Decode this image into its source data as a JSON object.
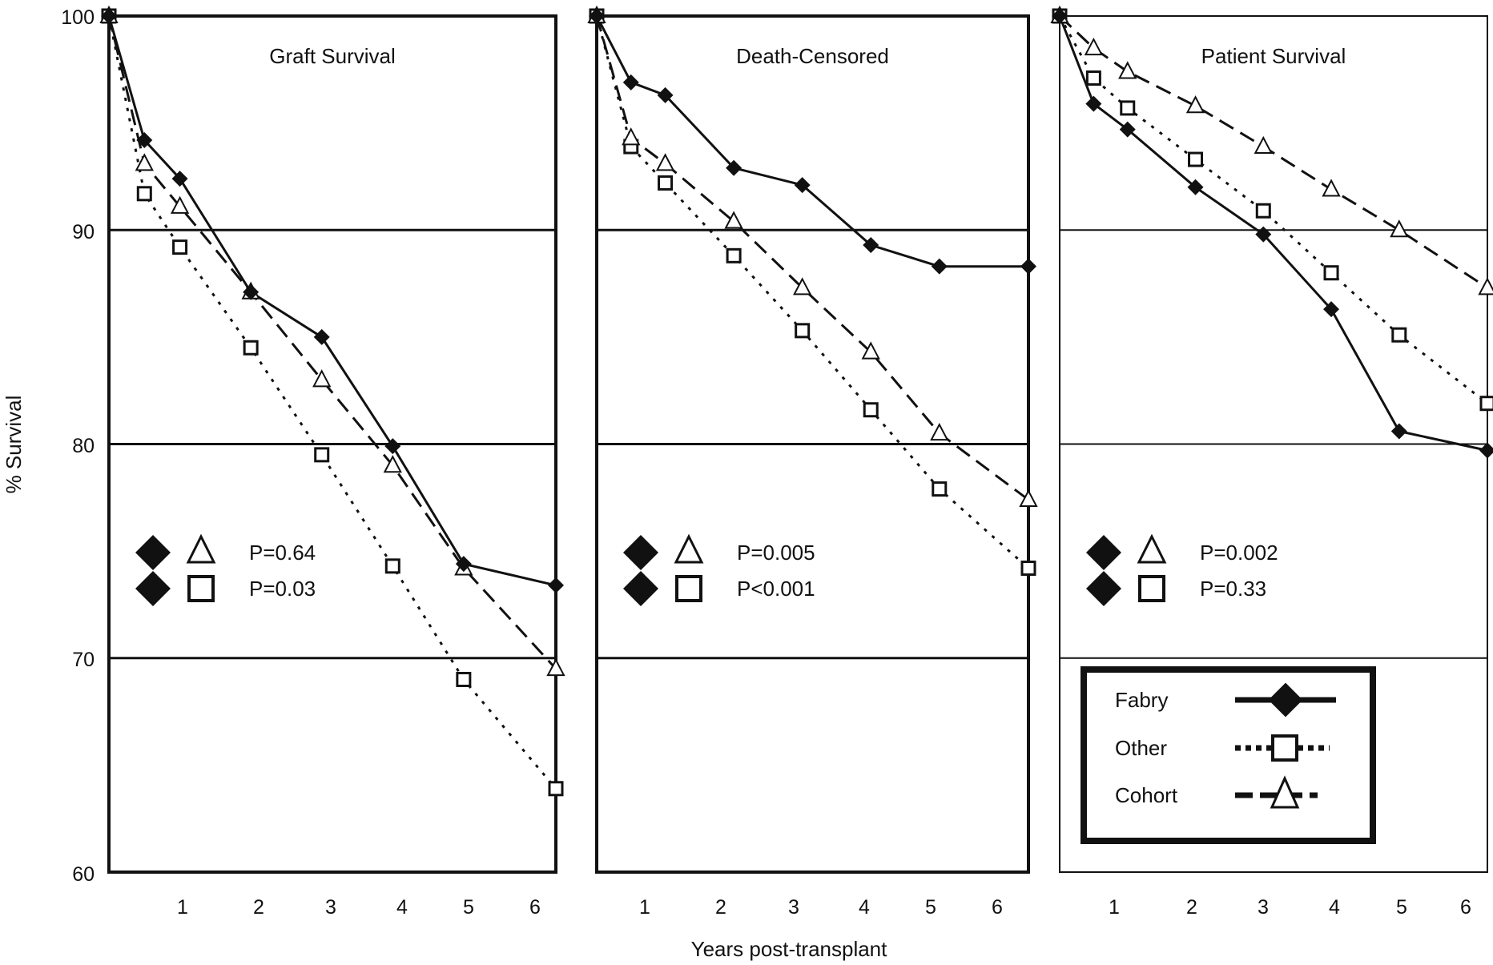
{
  "figure": {
    "y_axis_label": "% Survival",
    "x_axis_label": "Years post-transplant",
    "y_ticks": [
      "100",
      "90",
      "80",
      "70",
      "60"
    ],
    "x_ticks": [
      "1",
      "2",
      "3",
      "4",
      "5",
      "6"
    ]
  },
  "legend": {
    "entries": [
      {
        "label": "Fabry",
        "marker": "filled-diamond",
        "line": "solid"
      },
      {
        "label": "Other",
        "marker": "open-square",
        "line": "dotted"
      },
      {
        "label": "Cohort",
        "marker": "open-triangle",
        "line": "dashed"
      }
    ]
  },
  "colors": {
    "ink": "#111111",
    "background": "#ffffff"
  },
  "chart_data": [
    {
      "type": "line",
      "title": "Graft Survival",
      "xlabel": "Years post-transplant",
      "ylabel": "% Survival",
      "ylim": [
        60,
        100
      ],
      "xlim": [
        0,
        6.3
      ],
      "grid": "horizontal at 70, 80, 90",
      "series": [
        {
          "name": "Fabry",
          "x": [
            0,
            0.5,
            1,
            2,
            3,
            4,
            5,
            6.3
          ],
          "y": [
            100,
            94.2,
            92.4,
            87.1,
            85.0,
            79.9,
            74.4,
            73.4
          ]
        },
        {
          "name": "Other",
          "x": [
            0,
            0.5,
            1,
            2,
            3,
            4,
            5,
            6.3
          ],
          "y": [
            100,
            91.7,
            89.2,
            84.5,
            79.5,
            74.3,
            69.0,
            63.9
          ]
        },
        {
          "name": "Cohort",
          "x": [
            0,
            0.5,
            1,
            2,
            3,
            4,
            5,
            6.3
          ],
          "y": [
            100,
            93.1,
            91.1,
            87.1,
            83.0,
            79.0,
            74.2,
            69.5
          ]
        }
      ],
      "annotations": [
        {
          "pair": "Fabry vs Cohort",
          "text": "P=0.64"
        },
        {
          "pair": "Fabry vs Other",
          "text": "P=0.03"
        }
      ]
    },
    {
      "type": "line",
      "title": "Death-Censored",
      "xlabel": "Years post-transplant",
      "ylabel": "% Survival",
      "ylim": [
        60,
        100
      ],
      "xlim": [
        0,
        6.3
      ],
      "grid": "horizontal at 70, 80, 90",
      "series": [
        {
          "name": "Fabry",
          "x": [
            0,
            0.5,
            1,
            2,
            3,
            4,
            5,
            6.3
          ],
          "y": [
            100,
            96.9,
            96.3,
            92.9,
            92.1,
            89.3,
            88.3,
            88.3
          ]
        },
        {
          "name": "Other",
          "x": [
            0,
            0.5,
            1,
            2,
            3,
            4,
            5,
            6.3
          ],
          "y": [
            100,
            93.9,
            92.2,
            88.8,
            85.3,
            81.6,
            77.9,
            74.2
          ]
        },
        {
          "name": "Cohort",
          "x": [
            0,
            0.5,
            1,
            2,
            3,
            4,
            5,
            6.3
          ],
          "y": [
            100,
            94.3,
            93.1,
            90.4,
            87.3,
            84.3,
            80.5,
            77.4
          ]
        }
      ],
      "annotations": [
        {
          "pair": "Fabry vs Cohort",
          "text": "P=0.005"
        },
        {
          "pair": "Fabry vs Other",
          "text": "P<0.001"
        }
      ]
    },
    {
      "type": "line",
      "title": "Patient Survival",
      "xlabel": "Years post-transplant",
      "ylabel": "% Survival",
      "ylim": [
        60,
        100
      ],
      "xlim": [
        0,
        6.3
      ],
      "grid": "horizontal at 70, 80, 90",
      "series": [
        {
          "name": "Fabry",
          "x": [
            0,
            0.5,
            1,
            2,
            3,
            4,
            5,
            6.3
          ],
          "y": [
            100,
            95.9,
            94.7,
            92.0,
            89.8,
            86.3,
            80.6,
            79.7
          ]
        },
        {
          "name": "Other",
          "x": [
            0,
            0.5,
            1,
            2,
            3,
            4,
            5,
            6.3
          ],
          "y": [
            100,
            97.1,
            95.7,
            93.3,
            90.9,
            88.0,
            85.1,
            81.9
          ]
        },
        {
          "name": "Cohort",
          "x": [
            0,
            0.5,
            1,
            2,
            3,
            4,
            5,
            6.3
          ],
          "y": [
            100,
            98.5,
            97.4,
            95.8,
            93.9,
            91.9,
            90.0,
            87.3
          ]
        }
      ],
      "annotations": [
        {
          "pair": "Fabry vs Cohort",
          "text": "P=0.002"
        },
        {
          "pair": "Fabry vs Other",
          "text": "P=0.33"
        }
      ]
    }
  ]
}
